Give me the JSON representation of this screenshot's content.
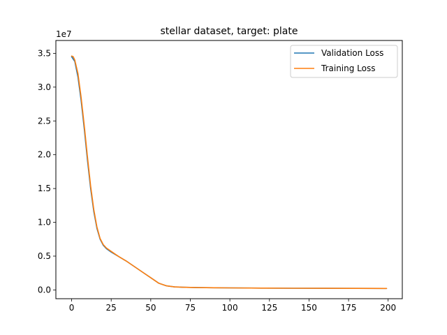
{
  "chart_data": {
    "type": "line",
    "title": "stellar dataset, target: plate",
    "xlabel": "",
    "ylabel": "",
    "y_offset_label": "1e7",
    "xlim": [
      -9.95,
      208.95
    ],
    "ylim": [
      -1.3,
      36.9
    ],
    "y_scale_note": "values in units of 1e7",
    "x_ticks": [
      0,
      25,
      50,
      75,
      100,
      125,
      150,
      175,
      200
    ],
    "y_ticks": [
      0.0,
      0.5,
      1.0,
      1.5,
      2.0,
      2.5,
      3.0,
      3.5
    ],
    "x_tick_labels": [
      "0",
      "25",
      "50",
      "75",
      "100",
      "125",
      "150",
      "175",
      "200"
    ],
    "y_tick_labels": [
      "0.0",
      "0.5",
      "1.0",
      "1.5",
      "2.0",
      "2.5",
      "3.0",
      "3.5"
    ],
    "grid": false,
    "legend_position": "top-right",
    "series": [
      {
        "name": "Validation Loss",
        "color": "#1f77b4",
        "x": [
          0,
          2,
          4,
          6,
          8,
          10,
          12,
          14,
          16,
          18,
          20,
          22,
          25,
          30,
          35,
          40,
          45,
          50,
          55,
          60,
          65,
          70,
          80,
          90,
          100,
          120,
          140,
          160,
          180,
          199
        ],
        "y": [
          3.45,
          3.38,
          3.15,
          2.8,
          2.38,
          1.92,
          1.5,
          1.16,
          0.91,
          0.75,
          0.66,
          0.61,
          0.56,
          0.49,
          0.42,
          0.34,
          0.26,
          0.18,
          0.1,
          0.06,
          0.045,
          0.04,
          0.035,
          0.032,
          0.03,
          0.027,
          0.025,
          0.024,
          0.023,
          0.022
        ]
      },
      {
        "name": "Training Loss",
        "color": "#ff7f0e",
        "x": [
          0,
          1,
          2,
          4,
          6,
          8,
          10,
          12,
          14,
          16,
          18,
          20,
          22,
          25,
          30,
          35,
          40,
          45,
          50,
          55,
          60,
          65,
          70,
          80,
          90,
          100,
          120,
          140,
          160,
          180,
          199
        ],
        "y": [
          3.46,
          3.45,
          3.4,
          3.2,
          2.85,
          2.43,
          1.97,
          1.54,
          1.19,
          0.93,
          0.76,
          0.67,
          0.62,
          0.57,
          0.49,
          0.42,
          0.34,
          0.26,
          0.18,
          0.1,
          0.06,
          0.045,
          0.04,
          0.035,
          0.032,
          0.03,
          0.027,
          0.025,
          0.024,
          0.023,
          0.022
        ]
      }
    ]
  }
}
